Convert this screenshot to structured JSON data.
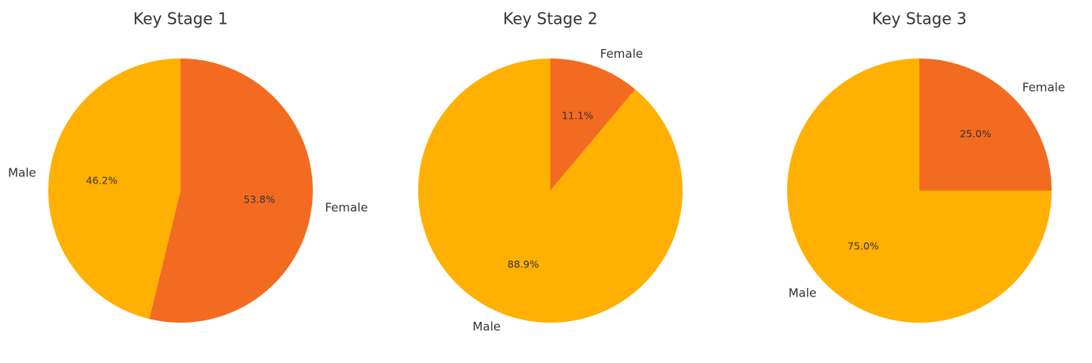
{
  "chart_data": [
    {
      "type": "pie",
      "title": "Key Stage 1",
      "slices": [
        {
          "label": "Female",
          "value": 53.8,
          "pct_label": "53.8%",
          "color": "#F26B21"
        },
        {
          "label": "Male",
          "value": 46.2,
          "pct_label": "46.2%",
          "color": "#FFB000"
        }
      ]
    },
    {
      "type": "pie",
      "title": "Key Stage 2",
      "slices": [
        {
          "label": "Female",
          "value": 11.1,
          "pct_label": "11.1%",
          "color": "#F26B21"
        },
        {
          "label": "Male",
          "value": 88.9,
          "pct_label": "88.9%",
          "color": "#FFB000"
        }
      ]
    },
    {
      "type": "pie",
      "title": "Key Stage 3",
      "slices": [
        {
          "label": "Female",
          "value": 25.0,
          "pct_label": "25.0%",
          "color": "#F26B21"
        },
        {
          "label": "Male",
          "value": 75.0,
          "pct_label": "75.0%",
          "color": "#FFB000"
        }
      ]
    }
  ]
}
